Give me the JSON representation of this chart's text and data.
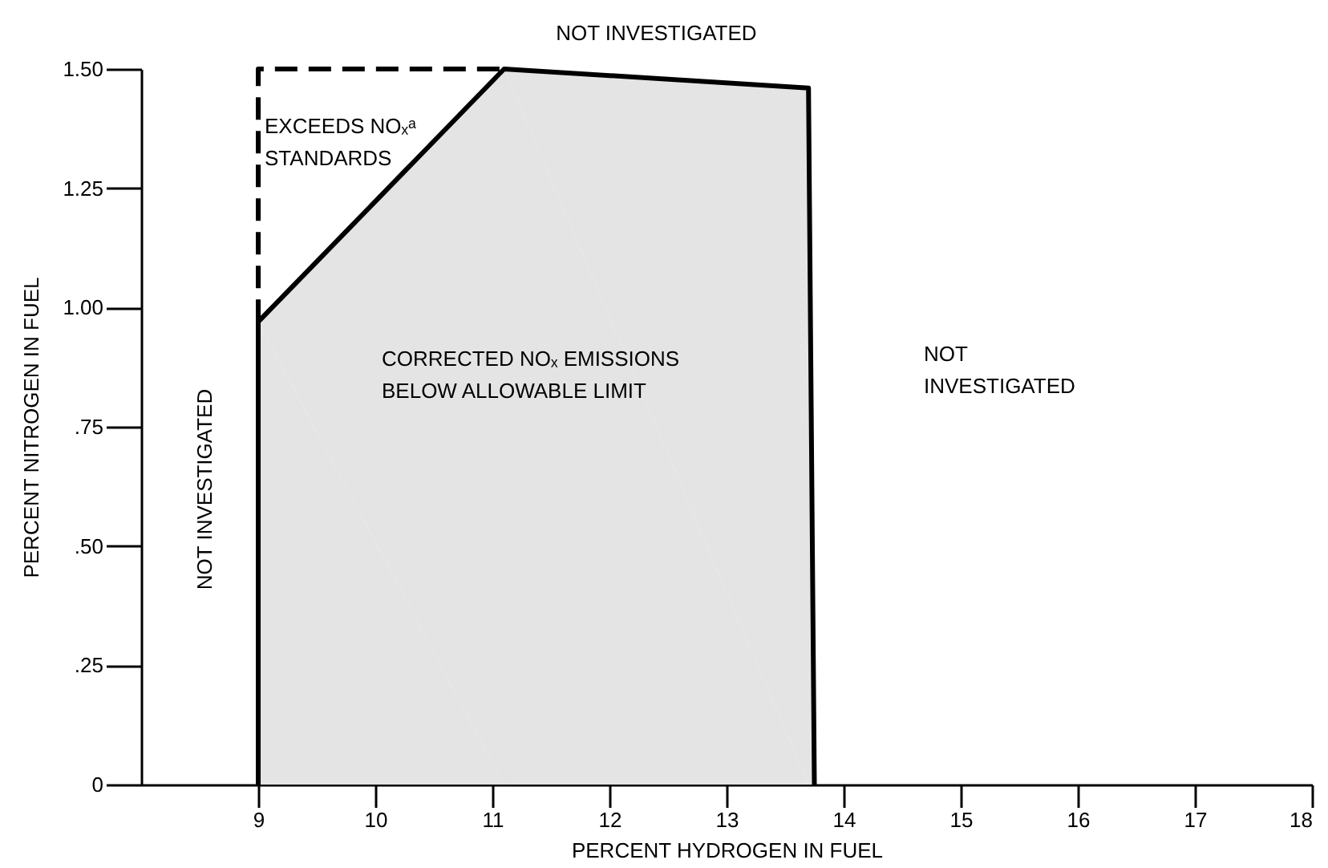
{
  "chart_data": {
    "type": "line",
    "xlabel": "PERCENT HYDROGEN IN FUEL",
    "ylabel": "PERCENT NITROGEN IN FUEL",
    "xlim": [
      8,
      18
    ],
    "xticks": [
      9,
      10,
      11,
      12,
      13,
      14,
      15,
      16,
      17,
      18
    ],
    "ylim": [
      0,
      1.5
    ],
    "yticks": [
      0,
      {
        "value": 0.25,
        "label": ".25"
      },
      {
        "value": 0.5,
        "label": ".50"
      },
      {
        "value": 0.75,
        "label": ".75"
      },
      {
        "value": 1.0,
        "label": "1.00"
      },
      {
        "value": 1.25,
        "label": "1.25"
      },
      {
        "value": 1.5,
        "label": "1.50"
      }
    ],
    "grid": false,
    "legend": false,
    "series": [
      {
        "type": "area",
        "color": "#e4e4e4",
        "x": [
          9,
          9,
          11.1,
          13.7,
          13.75
        ],
        "values": [
          0,
          0.97,
          1.5,
          1.46,
          0
        ]
      },
      {
        "color": "#000000",
        "line_style": "dashed",
        "x": [
          9,
          9,
          11.1
        ],
        "values": [
          0.97,
          1.5,
          1.5
        ]
      }
    ],
    "annotations": [
      "NOT INVESTIGATED",
      "NOT INVESTIGATED",
      "EXCEEDS NOₓᵃ\nSTANDARDS",
      "CORRECTED NOₓ EMISSIONS\nBELOW ALLOWABLE LIMIT",
      "NOT\nINVESTIGATED"
    ]
  }
}
